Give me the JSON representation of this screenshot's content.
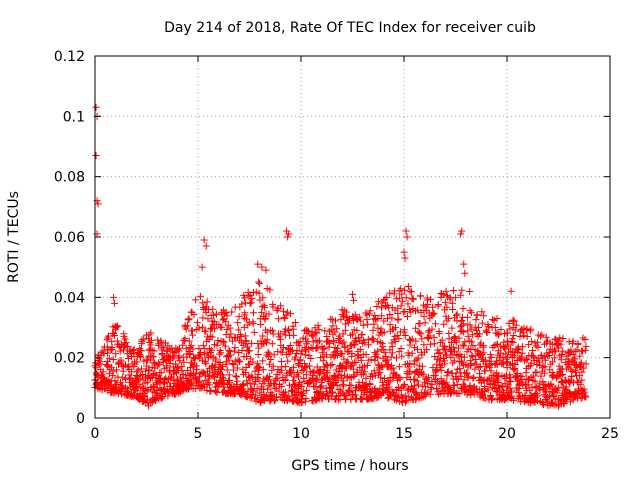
{
  "chart_data": {
    "type": "scatter",
    "title": "Day 214 of 2018, Rate Of TEC Index for receiver cuib",
    "xlabel": "GPS time / hours",
    "ylabel": "ROTI / TECUs",
    "xlim": [
      0,
      25
    ],
    "ylim": [
      0,
      0.12
    ],
    "xticks": [
      "0",
      "5",
      "10",
      "15",
      "20",
      "25"
    ],
    "yticks": [
      "0",
      "0.02",
      "0.04",
      "0.06",
      "0.08",
      "0.1",
      "0.12"
    ],
    "grid": true,
    "marker": "+",
    "color": "#ff0000",
    "series": [
      {
        "name": "ROTI",
        "notable_points": [
          {
            "x": 0.05,
            "y": 0.103
          },
          {
            "x": 0.1,
            "y": 0.1
          },
          {
            "x": 0.05,
            "y": 0.087
          },
          {
            "x": 0.1,
            "y": 0.072
          },
          {
            "x": 0.15,
            "y": 0.071
          },
          {
            "x": 0.1,
            "y": 0.061
          },
          {
            "x": 0.9,
            "y": 0.04
          },
          {
            "x": 0.95,
            "y": 0.038
          },
          {
            "x": 5.3,
            "y": 0.059
          },
          {
            "x": 5.4,
            "y": 0.057
          },
          {
            "x": 5.2,
            "y": 0.05
          },
          {
            "x": 9.3,
            "y": 0.062
          },
          {
            "x": 9.35,
            "y": 0.06
          },
          {
            "x": 9.4,
            "y": 0.061
          },
          {
            "x": 7.9,
            "y": 0.051
          },
          {
            "x": 8.1,
            "y": 0.05
          },
          {
            "x": 8.3,
            "y": 0.049
          },
          {
            "x": 15.1,
            "y": 0.062
          },
          {
            "x": 15.15,
            "y": 0.06
          },
          {
            "x": 15.0,
            "y": 0.055
          },
          {
            "x": 15.05,
            "y": 0.053
          },
          {
            "x": 17.8,
            "y": 0.062
          },
          {
            "x": 17.75,
            "y": 0.061
          },
          {
            "x": 17.9,
            "y": 0.051
          },
          {
            "x": 17.95,
            "y": 0.048
          },
          {
            "x": 20.2,
            "y": 0.042
          },
          {
            "x": 12.5,
            "y": 0.041
          },
          {
            "x": 12.55,
            "y": 0.039
          },
          {
            "x": 2.6,
            "y": 0.004
          },
          {
            "x": 10.0,
            "y": 0.005
          },
          {
            "x": 22.5,
            "y": 0.004
          }
        ],
        "envelope": [
          {
            "x": 0,
            "lo": 0.01,
            "hi": 0.02
          },
          {
            "x": 1,
            "lo": 0.008,
            "hi": 0.032
          },
          {
            "x": 2,
            "lo": 0.007,
            "hi": 0.022
          },
          {
            "x": 2.5,
            "lo": 0.004,
            "hi": 0.03
          },
          {
            "x": 3,
            "lo": 0.006,
            "hi": 0.026
          },
          {
            "x": 4,
            "lo": 0.008,
            "hi": 0.024
          },
          {
            "x": 5,
            "lo": 0.01,
            "hi": 0.042
          },
          {
            "x": 6,
            "lo": 0.008,
            "hi": 0.035
          },
          {
            "x": 7,
            "lo": 0.008,
            "hi": 0.04
          },
          {
            "x": 8,
            "lo": 0.005,
            "hi": 0.046
          },
          {
            "x": 9,
            "lo": 0.006,
            "hi": 0.04
          },
          {
            "x": 10,
            "lo": 0.005,
            "hi": 0.03
          },
          {
            "x": 11,
            "lo": 0.006,
            "hi": 0.032
          },
          {
            "x": 12,
            "lo": 0.006,
            "hi": 0.036
          },
          {
            "x": 13,
            "lo": 0.006,
            "hi": 0.034
          },
          {
            "x": 14,
            "lo": 0.007,
            "hi": 0.04
          },
          {
            "x": 15,
            "lo": 0.005,
            "hi": 0.045
          },
          {
            "x": 16,
            "lo": 0.007,
            "hi": 0.04
          },
          {
            "x": 17,
            "lo": 0.008,
            "hi": 0.042
          },
          {
            "x": 18,
            "lo": 0.008,
            "hi": 0.044
          },
          {
            "x": 19,
            "lo": 0.006,
            "hi": 0.034
          },
          {
            "x": 20,
            "lo": 0.006,
            "hi": 0.034
          },
          {
            "x": 21,
            "lo": 0.005,
            "hi": 0.03
          },
          {
            "x": 22,
            "lo": 0.004,
            "hi": 0.028
          },
          {
            "x": 23,
            "lo": 0.005,
            "hi": 0.026
          },
          {
            "x": 23.8,
            "lo": 0.007,
            "hi": 0.028
          }
        ]
      }
    ]
  }
}
